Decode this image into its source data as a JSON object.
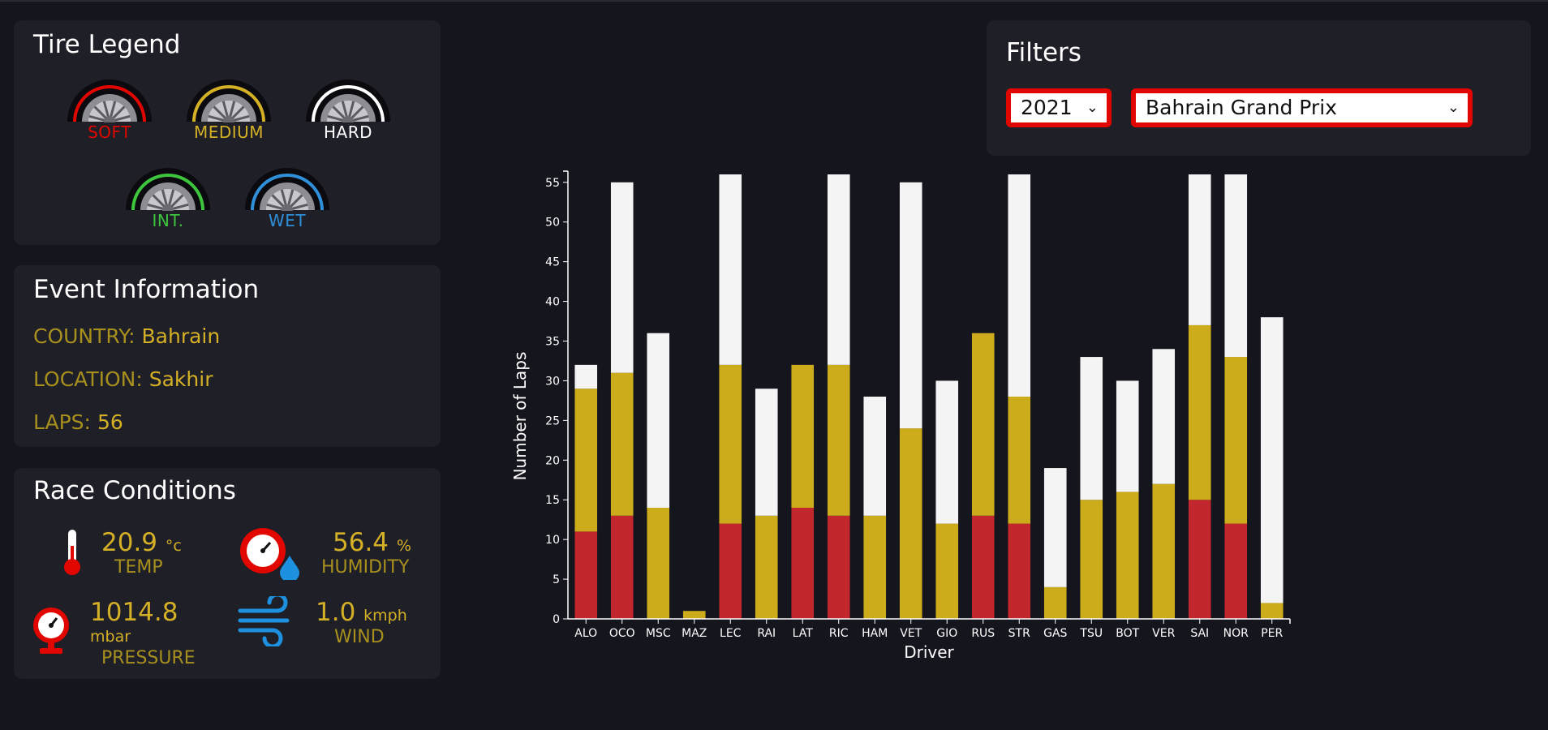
{
  "tire_legend": {
    "title": "Tire Legend",
    "tires": [
      {
        "label": "SOFT",
        "color": "#e10600",
        "icon": "tire-soft-icon"
      },
      {
        "label": "MEDIUM",
        "color": "#d4b026",
        "icon": "tire-medium-icon"
      },
      {
        "label": "HARD",
        "color": "#ffffff",
        "icon": "tire-hard-icon"
      },
      {
        "label": "INT.",
        "color": "#3dc63d",
        "icon": "tire-intermediate-icon"
      },
      {
        "label": "WET",
        "color": "#2f8fd8",
        "icon": "tire-wet-icon"
      }
    ]
  },
  "event_info": {
    "title": "Event Information",
    "country_key": "COUNTRY:",
    "country": "Bahrain",
    "location_key": "LOCATION:",
    "location": "Sakhir",
    "laps_key": "LAPS:",
    "laps": "56"
  },
  "race_conditions": {
    "title": "Race Conditions",
    "temp": {
      "value": "20.9",
      "unit": "°c",
      "label": "TEMP",
      "icon": "thermometer-icon"
    },
    "humidity": {
      "value": "56.4",
      "unit": "%",
      "label": "HUMIDITY",
      "icon": "humidity-gauge-icon"
    },
    "pressure": {
      "value": "1014.8",
      "unit": "mbar",
      "label": "PRESSURE",
      "icon": "pressure-gauge-icon"
    },
    "wind": {
      "value": "1.0",
      "unit": "kmph",
      "label": "WIND",
      "icon": "wind-icon"
    }
  },
  "filters": {
    "title": "Filters",
    "year": "2021",
    "race": "Bahrain Grand Prix"
  },
  "colors": {
    "soft": "#c1272d",
    "medium": "#cdac1c",
    "hard": "#f4f4f4",
    "accent": "#e10600"
  },
  "chart_data": {
    "type": "bar",
    "stacked": true,
    "xlabel": "Driver",
    "ylabel": "Number of Laps",
    "ylim": [
      0,
      56
    ],
    "yticks": [
      0,
      5,
      10,
      15,
      20,
      25,
      30,
      35,
      40,
      45,
      50,
      55
    ],
    "categories": [
      "ALO",
      "OCO",
      "MSC",
      "MAZ",
      "LEC",
      "RAI",
      "LAT",
      "RIC",
      "HAM",
      "VET",
      "GIO",
      "RUS",
      "STR",
      "GAS",
      "TSU",
      "BOT",
      "VER",
      "SAI",
      "NOR",
      "PER"
    ],
    "series": [
      {
        "compound": "soft",
        "values": [
          11,
          13,
          0,
          0,
          12,
          0,
          14,
          13,
          0,
          0,
          0,
          13,
          12,
          0,
          0,
          0,
          0,
          15,
          12,
          0
        ]
      },
      {
        "compound": "medium",
        "values": [
          18,
          18,
          14,
          1,
          20,
          13,
          18,
          19,
          13,
          24,
          12,
          23,
          16,
          4,
          15,
          16,
          17,
          22,
          21,
          2
        ]
      },
      {
        "compound": "hard",
        "values": [
          3,
          24,
          22,
          0,
          24,
          16,
          0,
          24,
          15,
          31,
          18,
          0,
          28,
          15,
          18,
          14,
          17,
          19,
          23,
          36
        ]
      }
    ]
  }
}
